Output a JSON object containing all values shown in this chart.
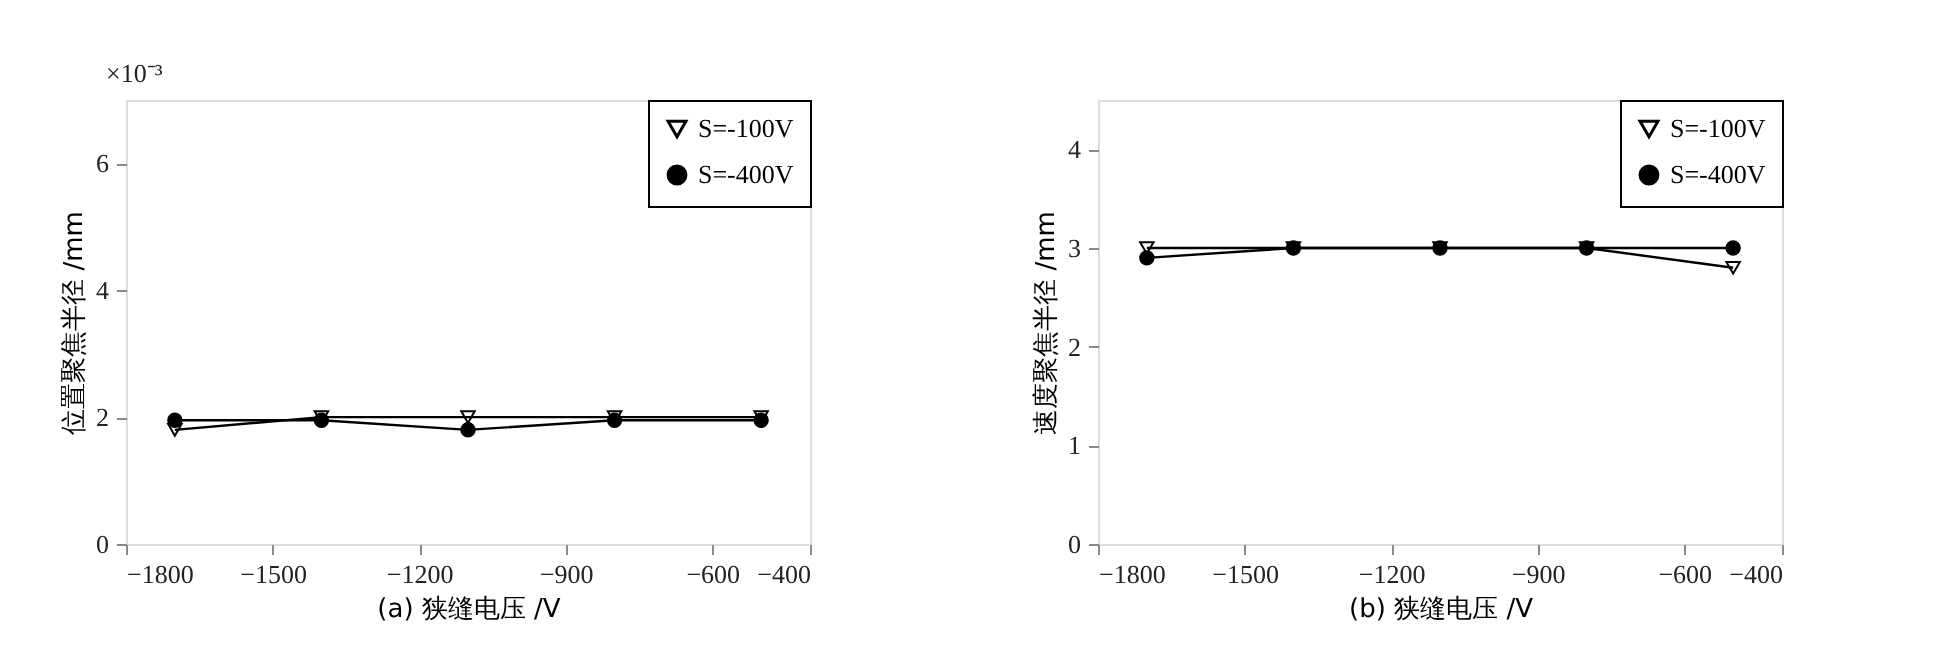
{
  "chart_data": [
    {
      "type": "line",
      "xlabel": "(a) 狭缝电压 /V",
      "ylabel": "位置聚焦半径 /mm",
      "annotations": [
        "×10⁻³"
      ],
      "x": [
        -1700,
        -1400,
        -1100,
        -800,
        -500
      ],
      "series": [
        {
          "name": "S=-100V",
          "color": "#000000",
          "marker": "triangle",
          "values": [
            1.8,
            2.0,
            2.0,
            2.0,
            2.0
          ]
        },
        {
          "name": "S=-400V",
          "color": "#000000",
          "marker": "circle",
          "values": [
            1.95,
            1.95,
            1.8,
            1.95,
            1.95
          ]
        }
      ],
      "xlim": [
        -1800,
        -400
      ],
      "xticks": [
        -1800,
        -1500,
        -1200,
        -900,
        -600,
        -400
      ],
      "ylim": [
        0,
        7
      ],
      "yticks": [
        0,
        2,
        4,
        6
      ],
      "grid": false,
      "legend": "top right"
    },
    {
      "type": "line",
      "xlabel": "(b) 狭缝电压 /V",
      "ylabel": "速度聚焦半径 /mm",
      "x": [
        -1700,
        -1400,
        -1100,
        -800,
        -500
      ],
      "series": [
        {
          "name": "S=-100V",
          "color": "#000000",
          "marker": "triangle",
          "values": [
            3.0,
            3.0,
            3.0,
            3.0,
            2.8
          ]
        },
        {
          "name": "S=-400V",
          "color": "#000000",
          "marker": "circle",
          "values": [
            2.9,
            3.0,
            3.0,
            3.0,
            3.0
          ]
        }
      ],
      "xlim": [
        -1800,
        -400
      ],
      "xticks": [
        -1800,
        -1500,
        -1200,
        -900,
        -600,
        -400
      ],
      "ylim": [
        0,
        4.5
      ],
      "yticks": [
        0,
        1,
        2,
        3,
        4
      ],
      "grid": false,
      "legend": "top right"
    }
  ]
}
